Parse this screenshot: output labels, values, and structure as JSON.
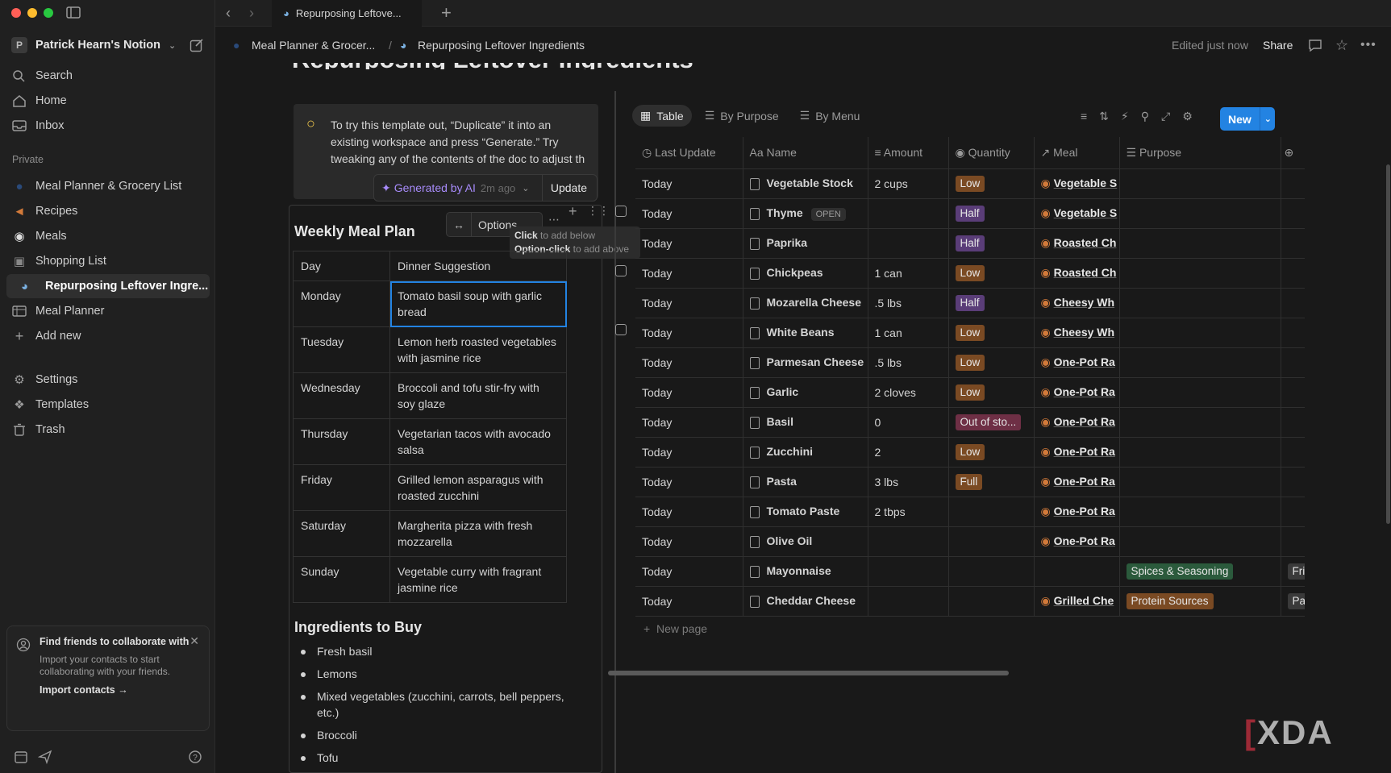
{
  "window": {
    "tab_title": "Repurposing Leftove..."
  },
  "sidebar": {
    "workspace": "Patrick Hearn's Notion",
    "nav": [
      {
        "label": "Search",
        "icon": "search-icon"
      },
      {
        "label": "Home",
        "icon": "home-icon"
      },
      {
        "label": "Inbox",
        "icon": "inbox-icon"
      }
    ],
    "section_private": "Private",
    "pages": [
      {
        "label": "Meal Planner & Grocery List"
      },
      {
        "label": "Recipes"
      },
      {
        "label": "Meals"
      },
      {
        "label": "Shopping List"
      },
      {
        "label": "Repurposing Leftover Ingre..."
      },
      {
        "label": "Meal Planner"
      }
    ],
    "add_new": "Add new",
    "bottom": [
      {
        "label": "Settings"
      },
      {
        "label": "Templates"
      },
      {
        "label": "Trash"
      }
    ],
    "friends": {
      "title": "Find friends to collaborate with",
      "desc": "Import your contacts to start collaborating with your friends.",
      "link": "Import contacts"
    }
  },
  "header": {
    "crumb1": "Meal Planner & Grocer...",
    "sep": "/",
    "crumb2": "Repurposing Leftover Ingredients",
    "edited": "Edited just now",
    "share": "Share"
  },
  "page": {
    "title": "Repurposing Leftover Ingredients",
    "callout": "To try this template out, “Duplicate” it into an existing workspace and press “Generate.” Try tweaking any of the contents of the doc to adjust th",
    "ai_label": "Generated by AI",
    "ai_time": "2m ago",
    "update": "Update",
    "block_options": "Options",
    "tooltip": {
      "click": "Click",
      "click_rest": " to add below",
      "opt": "Option-click",
      "opt_rest": " to add above"
    },
    "meal_title": "Weekly Meal Plan",
    "meal_header": [
      "Day",
      "Dinner Suggestion"
    ],
    "meal_rows": [
      [
        "Monday",
        "Tomato basil soup with garlic bread"
      ],
      [
        "Tuesday",
        "Lemon herb roasted vegetables with jasmine rice"
      ],
      [
        "Wednesday",
        "Broccoli and tofu stir-fry with soy glaze"
      ],
      [
        "Thursday",
        "Vegetarian tacos with avocado salsa"
      ],
      [
        "Friday",
        "Grilled lemon asparagus with roasted zucchini"
      ],
      [
        "Saturday",
        "Margherita pizza with fresh mozzarella"
      ],
      [
        "Sunday",
        "Vegetable curry with fragrant jasmine rice"
      ]
    ],
    "ingr_title": "Ingredients to Buy",
    "ingr": [
      "Fresh basil",
      "Lemons",
      "Mixed vegetables (zucchini, carrots, bell peppers, etc.)",
      "Broccoli",
      "Tofu"
    ]
  },
  "db": {
    "views": [
      "Table",
      "By Purpose",
      "By Menu"
    ],
    "new": "New",
    "columns": [
      "Last Update",
      "Name",
      "Amount",
      "Quantity",
      "Meal",
      "Purpose"
    ],
    "open_label": "OPEN",
    "rows": [
      {
        "u": "Today",
        "n": "Vegetable Stock",
        "a": "2 cups",
        "q": "Low",
        "m": "Vegetable S",
        "p": "",
        "x": ""
      },
      {
        "u": "Today",
        "n": "Thyme",
        "a": "",
        "q": "Half",
        "m": "Vegetable S",
        "p": "",
        "x": ""
      },
      {
        "u": "Today",
        "n": "Paprika",
        "a": "",
        "q": "Half",
        "m": "Roasted Ch",
        "p": "",
        "x": ""
      },
      {
        "u": "Today",
        "n": "Chickpeas",
        "a": "1 can",
        "q": "Low",
        "m": "Roasted Ch",
        "p": "",
        "x": ""
      },
      {
        "u": "Today",
        "n": "Mozarella Cheese",
        "a": ".5 lbs",
        "q": "Half",
        "m": "Cheesy Wh",
        "p": "",
        "x": ""
      },
      {
        "u": "Today",
        "n": "White Beans",
        "a": "1 can",
        "q": "Low",
        "m": "Cheesy Wh",
        "p": "",
        "x": ""
      },
      {
        "u": "Today",
        "n": "Parmesan Cheese",
        "a": ".5 lbs",
        "q": "Low",
        "m": "One-Pot Ra",
        "p": "",
        "x": ""
      },
      {
        "u": "Today",
        "n": "Garlic",
        "a": "2 cloves",
        "q": "Low",
        "m": "One-Pot Ra",
        "p": "",
        "x": ""
      },
      {
        "u": "Today",
        "n": "Basil",
        "a": "0",
        "q": "Out of sto...",
        "m": "One-Pot Ra",
        "p": "",
        "x": ""
      },
      {
        "u": "Today",
        "n": "Zucchini",
        "a": "2",
        "q": "Low",
        "m": "One-Pot Ra",
        "p": "",
        "x": ""
      },
      {
        "u": "Today",
        "n": "Pasta",
        "a": "3 lbs",
        "q": "Full",
        "m": "One-Pot Ra",
        "p": "",
        "x": ""
      },
      {
        "u": "Today",
        "n": "Tomato Paste",
        "a": "2 tbps",
        "q": "",
        "m": "One-Pot Ra",
        "p": "",
        "x": ""
      },
      {
        "u": "Today",
        "n": "Olive Oil",
        "a": "",
        "q": "",
        "m": "One-Pot Ra",
        "p": "",
        "x": ""
      },
      {
        "u": "Today",
        "n": "Mayonnaise",
        "a": "",
        "q": "",
        "m": "",
        "p": "Spices & Seasoning",
        "x": "Fri"
      },
      {
        "u": "Today",
        "n": "Cheddar Cheese",
        "a": "",
        "q": "",
        "m": "Grilled Che",
        "p": "Protein Sources",
        "x": "Pa"
      }
    ],
    "new_page": "New page",
    "tag_colors": {
      "Low": "#7a4a23",
      "Half": "#5a3d78",
      "Out of sto...": "#6e2f45",
      "Full": "#7a4a23",
      "Spices & Seasoning": "#2b5a3c",
      "Protein Sources": "#7a4a23"
    }
  },
  "watermark": "XDA"
}
